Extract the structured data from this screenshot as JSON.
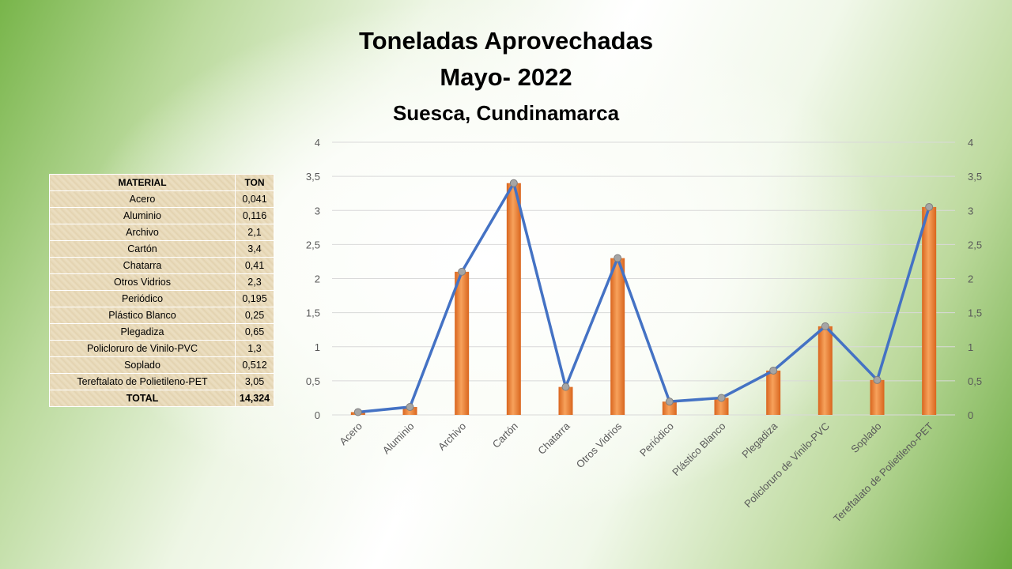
{
  "title_line1": "Toneladas Aprovechadas",
  "title_line2": "Mayo- 2022",
  "title_line3": "Suesca, Cundinamarca",
  "table": {
    "header": [
      "MATERIAL",
      "TON"
    ],
    "rows": [
      [
        "Acero",
        "0,041"
      ],
      [
        "Aluminio",
        "0,116"
      ],
      [
        "Archivo",
        "2,1"
      ],
      [
        "Cartón",
        "3,4"
      ],
      [
        "Chatarra",
        "0,41"
      ],
      [
        "Otros Vidrios",
        "2,3"
      ],
      [
        "Periódico",
        "0,195"
      ],
      [
        "Plástico Blanco",
        "0,25"
      ],
      [
        "Plegadiza",
        "0,65"
      ],
      [
        "Policloruro de Vinilo-PVC",
        "1,3"
      ],
      [
        "Soplado",
        "0,512"
      ],
      [
        "Tereftalato de Polietileno-PET",
        "3,05"
      ]
    ],
    "total": [
      "TOTAL",
      "14,324"
    ]
  },
  "chart_data": {
    "type": "bar",
    "categories": [
      "Acero",
      "Aluminio",
      "Archivo",
      "Cartón",
      "Chatarra",
      "Otros Vidrios",
      "Periódico",
      "Plástico Blanco",
      "Plegadiza",
      "Policloruro de Vinilo-PVC",
      "Soplado",
      "Tereftalato de Polietileno-PET"
    ],
    "series": [
      {
        "type": "bar",
        "values": [
          0.041,
          0.116,
          2.1,
          3.4,
          0.41,
          2.3,
          0.195,
          0.25,
          0.65,
          1.3,
          0.512,
          3.05
        ],
        "color": "#ED7D31"
      },
      {
        "type": "line",
        "values": [
          0.041,
          0.116,
          2.1,
          3.4,
          0.41,
          2.3,
          0.195,
          0.25,
          0.65,
          1.3,
          0.512,
          3.05
        ],
        "color": "#4472C4"
      }
    ],
    "ylim": [
      0,
      4
    ],
    "yticks": [
      "0",
      "0,5",
      "1",
      "1,5",
      "2",
      "2,5",
      "3",
      "3,5",
      "4"
    ],
    "secondary_axis": true,
    "grid": true
  }
}
